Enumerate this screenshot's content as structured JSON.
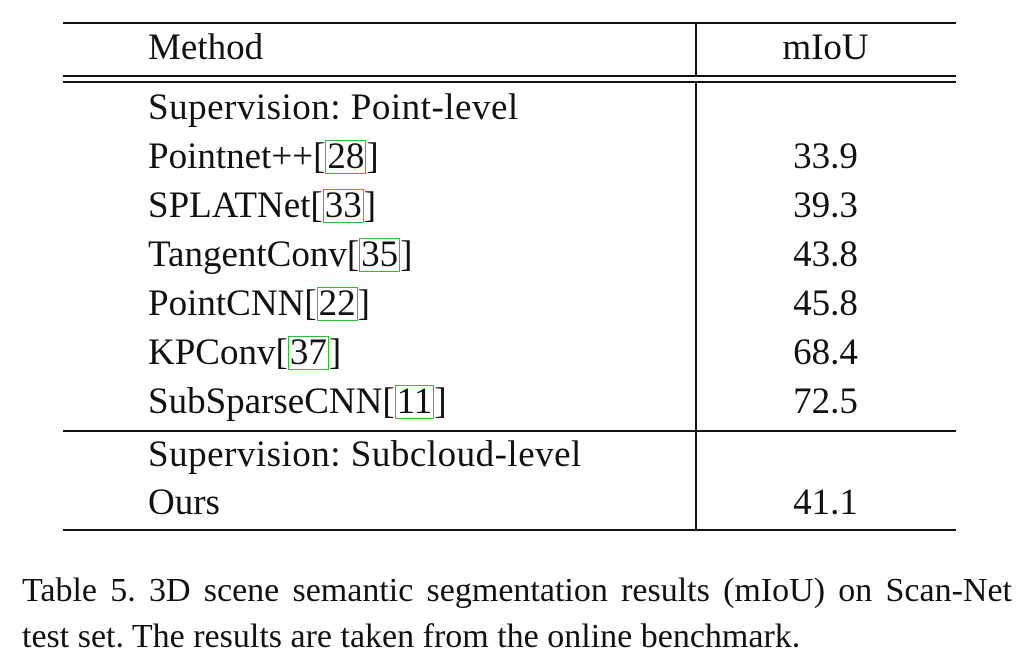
{
  "table": {
    "header": {
      "method": "Method",
      "miou": "mIoU"
    },
    "groups": [
      {
        "label": "Supervision:  Point-level",
        "rows": [
          {
            "name": "Pointnet++",
            "ref": "28",
            "miou": "33.9"
          },
          {
            "name": "SPLATNet",
            "ref": "33",
            "miou": "39.3"
          },
          {
            "name": "TangentConv",
            "ref": "35",
            "miou": "43.8"
          },
          {
            "name": "PointCNN",
            "ref": "22",
            "miou": "45.8"
          },
          {
            "name": "KPConv",
            "ref": "37",
            "miou": "68.4"
          },
          {
            "name": "SubSparseCNN",
            "ref": "11",
            "miou": "72.5"
          }
        ]
      },
      {
        "label": "Supervision:  Subcloud-level",
        "rows": [
          {
            "name": "Ours",
            "ref": "",
            "miou": "41.1"
          }
        ]
      }
    ]
  },
  "caption": "Table 5. 3D scene semantic segmentation results (mIoU) on Scan-Net test set. The results are taken from the online benchmark.",
  "colors": {
    "ref_box": "#2dbf2d",
    "text": "#111111"
  }
}
